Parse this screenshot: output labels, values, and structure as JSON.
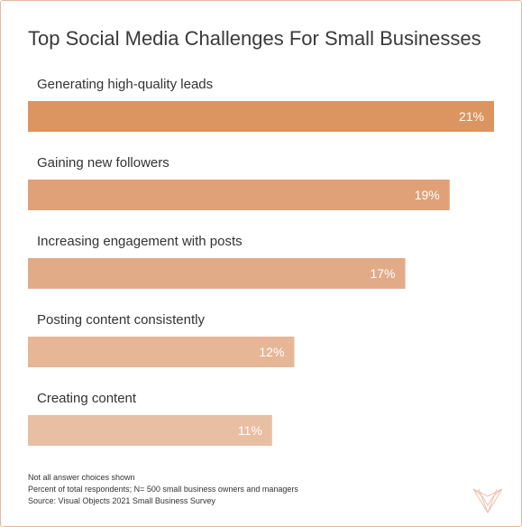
{
  "title": "Top Social Media Challenges For Small Businesses",
  "chart_data": {
    "type": "bar",
    "orientation": "horizontal",
    "categories": [
      "Generating high-quality leads",
      "Gaining new followers",
      "Increasing engagement with posts",
      "Posting content consistently",
      "Creating content"
    ],
    "values": [
      21,
      19,
      17,
      12,
      11
    ],
    "value_labels": [
      "21%",
      "19%",
      "17%",
      "12%",
      "11%"
    ],
    "unit": "%",
    "xlim": [
      0,
      21
    ],
    "grid": false,
    "legend": "none",
    "bar_colors": [
      "#dc9460",
      "#e0a178",
      "#e2ab88",
      "#e6b697",
      "#e9bfa4"
    ]
  },
  "notes": [
    "Not all answer choices shown",
    "Percent of total respondents; N= 500 small business owners and managers",
    "Source: Visual Objects 2021 Small Business Survey"
  ],
  "colors": {
    "border": "#e8b89a",
    "title": "#3a3a3a",
    "logo": "#e8c4aa"
  },
  "logo_icon": "visual-objects-logo"
}
